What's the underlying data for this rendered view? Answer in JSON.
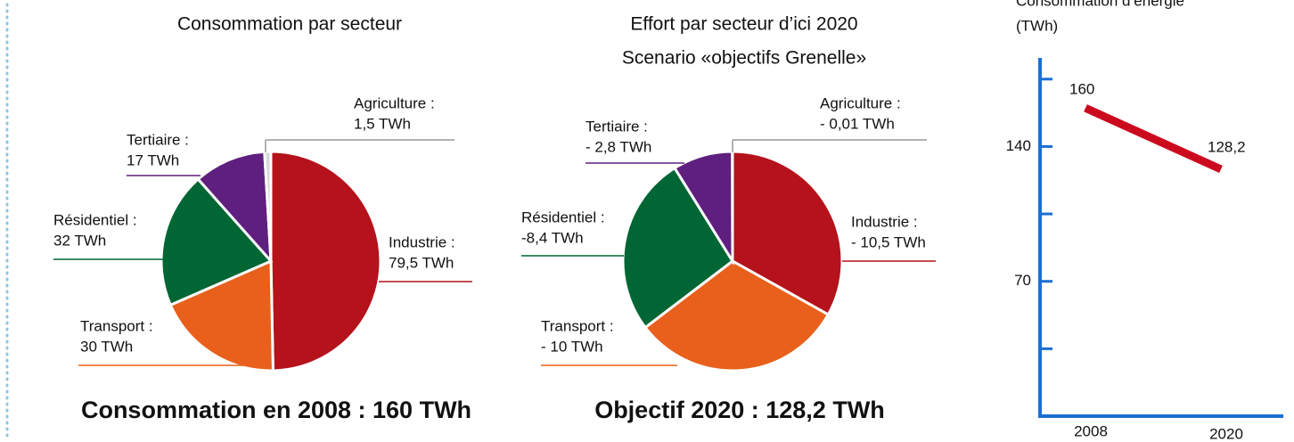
{
  "chart_data": [
    {
      "type": "pie",
      "title": "Consommation par secteur",
      "categories": [
        "Industrie :",
        "Transport :",
        "Résidentiel :",
        "Tertiaire :",
        "Agriculture :"
      ],
      "values": [
        79.5,
        30,
        32,
        17,
        1.5
      ],
      "value_labels": [
        "79,5 TWh",
        "30 TWh",
        "32 TWh",
        "17 TWh",
        "1,5 TWh"
      ],
      "colors": [
        "#b5121b",
        "#e8601c",
        "#006633",
        "#5e1f7f",
        "#d8d8d8"
      ],
      "footer": "Consommation en 2008 : 160 TWh"
    },
    {
      "type": "pie",
      "title": "Effort par secteur d’ici 2020",
      "subtitle": "Scenario «objectifs Grenelle»",
      "categories": [
        "Industrie :",
        "Transport :",
        "Résidentiel :",
        "Tertiaire :",
        "Agriculture :"
      ],
      "values": [
        -10.5,
        -10,
        -8.4,
        -2.8,
        -0.01
      ],
      "value_labels": [
        "- 10,5 TWh",
        "- 10 TWh",
        "-8,4 TWh",
        "- 2,8 TWh",
        "- 0,01 TWh"
      ],
      "colors": [
        "#b5121b",
        "#e8601c",
        "#006633",
        "#5e1f7f",
        "#d8d8d8"
      ],
      "footer": "Objectif 2020 : 128,2 TWh"
    },
    {
      "type": "line",
      "title_lines": [
        "Consommation d’énergie",
        "(TWh)"
      ],
      "categories": [
        "2008",
        "2020"
      ],
      "series": [
        {
          "color": "#cc0a1e",
          "values": [
            160,
            128.2
          ],
          "value_labels": [
            "160",
            "128,2"
          ]
        }
      ],
      "ylim": [
        0,
        186
      ],
      "yticks": [
        70,
        140
      ],
      "minor_yticks": [
        35,
        105,
        175
      ],
      "axis_color": "#1c6fd4"
    }
  ]
}
